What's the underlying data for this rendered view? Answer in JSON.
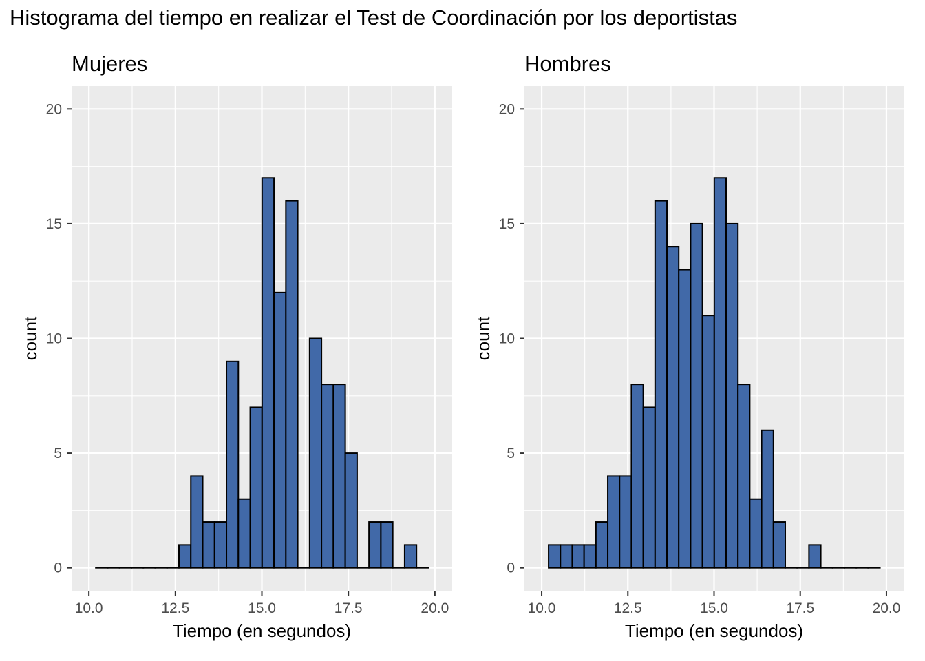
{
  "title": "Histograma del tiempo en realizar el Test de Coordinación por los deportistas",
  "colors": {
    "bar_fill": "#4169A8",
    "bar_outline": "#000000",
    "panel_background": "#EBEBEB",
    "grid": "#FFFFFF"
  },
  "chart_data": [
    {
      "type": "bar",
      "title": "Mujeres",
      "xlabel": "Tiempo (en segundos)",
      "ylabel": "count",
      "xlim": [
        9.5,
        20.5
      ],
      "ylim": [
        -1,
        21
      ],
      "x_ticks": [
        "10.0",
        "12.5",
        "15.0",
        "17.5",
        "20.0"
      ],
      "y_ticks": [
        "0",
        "5",
        "10",
        "15",
        "20"
      ],
      "bin_start": 10.2,
      "bin_width": 0.3433,
      "values": [
        0,
        0,
        0,
        0,
        0,
        0,
        0,
        1,
        4,
        2,
        2,
        9,
        3,
        7,
        17,
        12,
        16,
        0,
        10,
        8,
        8,
        5,
        0,
        2,
        2,
        0,
        1,
        0
      ],
      "grid": true
    },
    {
      "type": "bar",
      "title": "Hombres",
      "xlabel": "Tiempo (en segundos)",
      "ylabel": "count",
      "xlim": [
        9.5,
        20.5
      ],
      "ylim": [
        -1,
        21
      ],
      "x_ticks": [
        "10.0",
        "12.5",
        "15.0",
        "17.5",
        "20.0"
      ],
      "y_ticks": [
        "0",
        "5",
        "10",
        "15",
        "20"
      ],
      "bin_start": 10.2,
      "bin_width": 0.3433,
      "values": [
        1,
        1,
        1,
        1,
        2,
        4,
        4,
        8,
        7,
        16,
        14,
        13,
        15,
        11,
        17,
        15,
        8,
        3,
        6,
        2,
        0,
        0,
        1,
        0,
        0,
        0,
        0,
        0
      ],
      "grid": true
    }
  ]
}
